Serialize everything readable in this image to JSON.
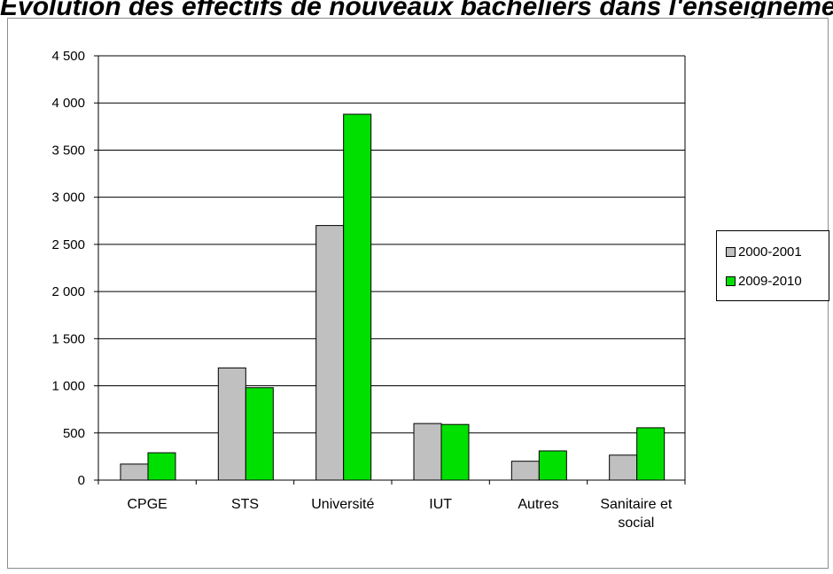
{
  "page": {
    "title": "Évolution des effectifs de nouveaux bacheliers dans l'enseignement supérieur"
  },
  "colors": {
    "series_2000": "#c0c0c0",
    "series_2009": "#00e000",
    "gridline": "#000000",
    "axis": "#000000"
  },
  "legend": {
    "placement": "right",
    "entries": [
      {
        "label": "2000-2001",
        "color": "#c0c0c0"
      },
      {
        "label": "2009-2010",
        "color": "#00e000"
      }
    ]
  },
  "chart_data": {
    "type": "bar",
    "title": "",
    "xlabel": "",
    "ylabel": "",
    "ylim": [
      0,
      4500
    ],
    "yticks": [
      0,
      500,
      1000,
      1500,
      2000,
      2500,
      3000,
      3500,
      4000,
      4500
    ],
    "ytick_labels": [
      "0",
      "500",
      "1 000",
      "1 500",
      "2 000",
      "2 500",
      "3 000",
      "3 500",
      "4 000",
      "4 500"
    ],
    "grid": true,
    "categories": [
      "CPGE",
      "STS",
      "Université",
      "IUT",
      "Autres",
      "Sanitaire et social"
    ],
    "category_lines": [
      [
        "CPGE"
      ],
      [
        "STS"
      ],
      [
        "Université"
      ],
      [
        "IUT"
      ],
      [
        "Autres"
      ],
      [
        "Sanitaire et",
        "social"
      ]
    ],
    "series": [
      {
        "name": "2000-2001",
        "color": "#c0c0c0",
        "values": [
          170,
          1190,
          2700,
          600,
          200,
          265
        ]
      },
      {
        "name": "2009-2010",
        "color": "#00e000",
        "values": [
          290,
          980,
          3880,
          590,
          310,
          555
        ]
      }
    ]
  }
}
